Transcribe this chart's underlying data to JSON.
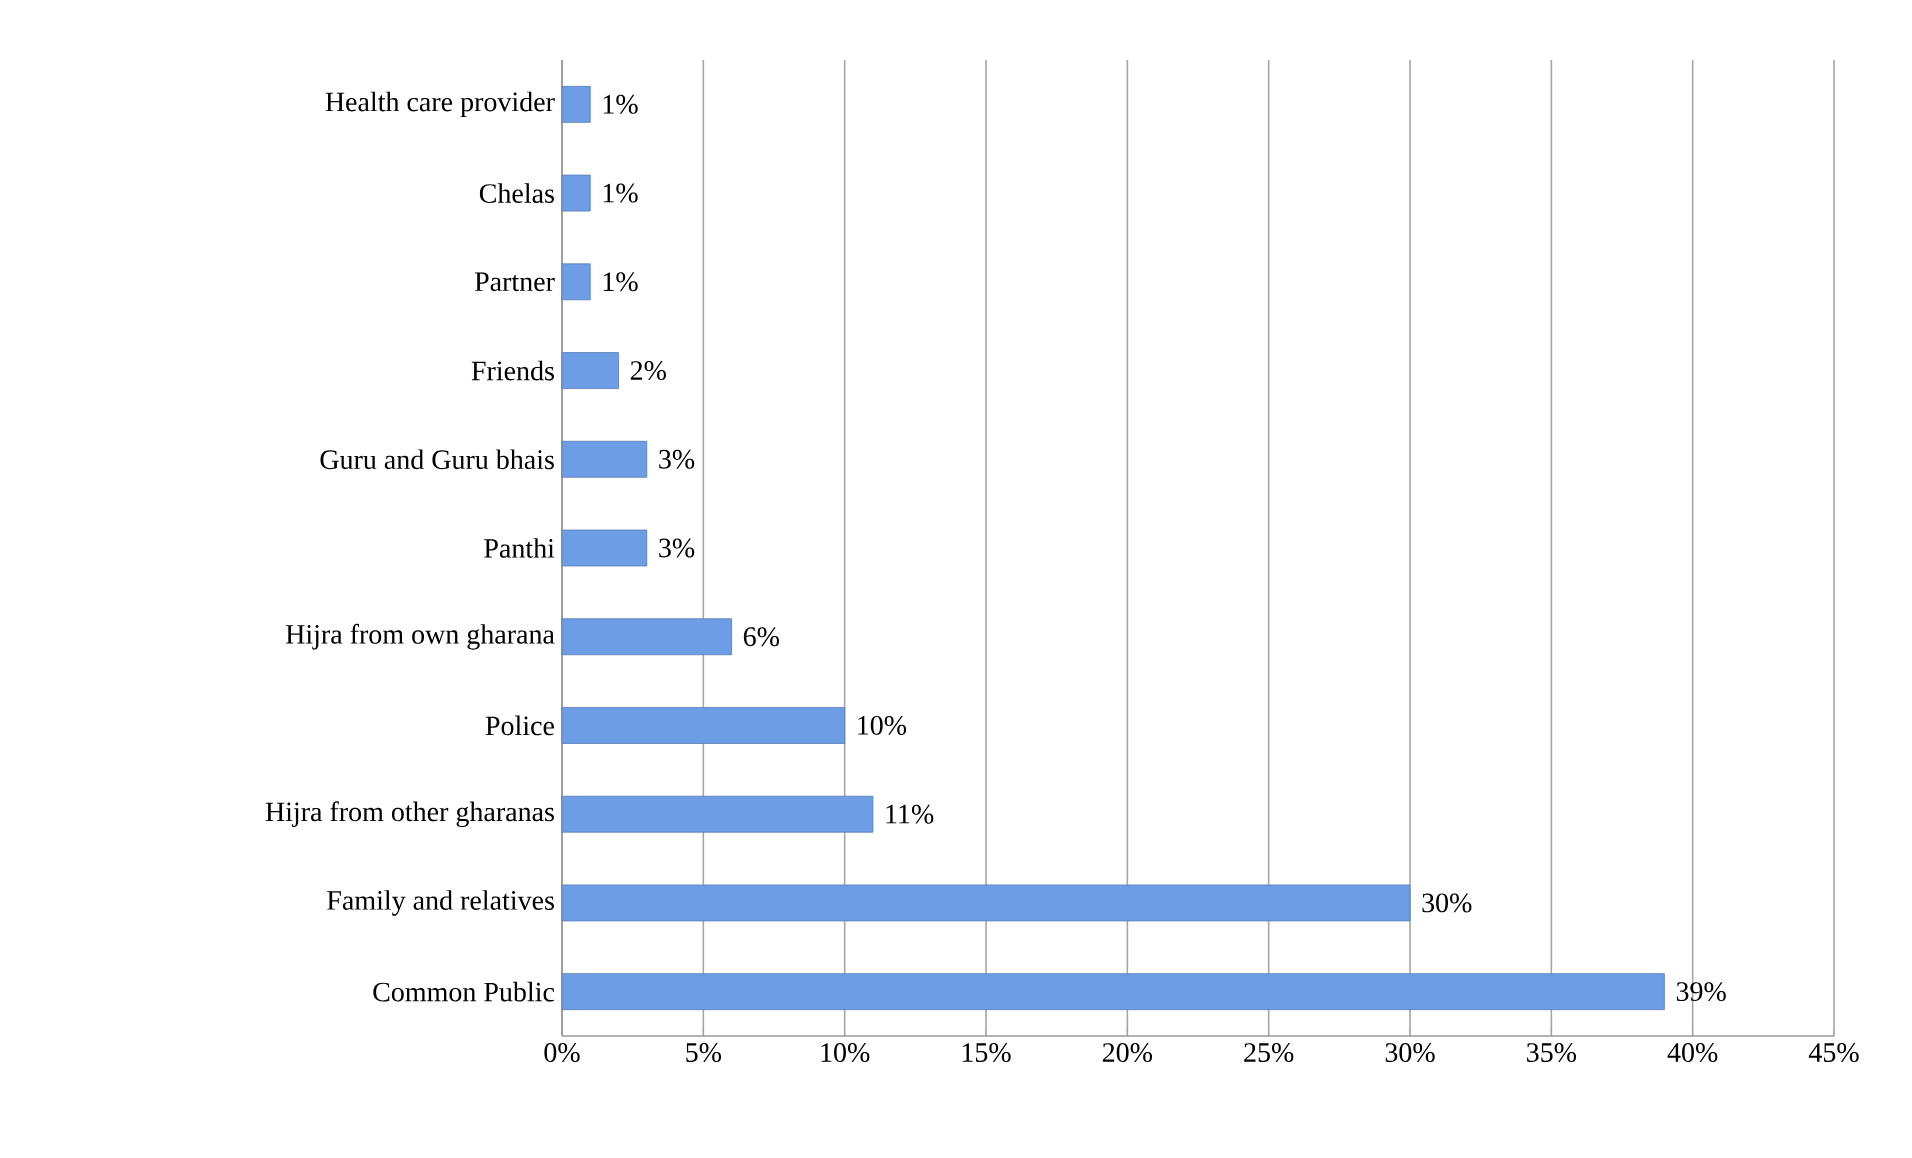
{
  "chart_data": {
    "type": "bar",
    "orientation": "horizontal",
    "categories": [
      "Health care provider",
      "Chelas",
      "Partner",
      "Friends",
      "Guru and Guru bhais",
      "Panthi",
      "Hijra from own gharana",
      "Police",
      "Hijra from other gharanas",
      "Family and relatives",
      "Common Public"
    ],
    "values": [
      1,
      1,
      1,
      2,
      3,
      3,
      6,
      10,
      11,
      30,
      39
    ],
    "value_labels": [
      "1%",
      "1%",
      "1%",
      "2%",
      "3%",
      "3%",
      "6%",
      "10%",
      "11%",
      "30%",
      "39%"
    ],
    "color": "#6d9de4",
    "xlim": [
      0,
      45
    ],
    "xticks": [
      {
        "value": 0,
        "label": "0%"
      },
      {
        "value": 5,
        "label": "5%"
      },
      {
        "value": 10,
        "label": "10%"
      },
      {
        "value": 15,
        "label": "15%"
      },
      {
        "value": 20,
        "label": "20%"
      },
      {
        "value": 25,
        "label": "25%"
      },
      {
        "value": 30,
        "label": "30%"
      },
      {
        "value": 35,
        "label": "35%"
      },
      {
        "value": 40,
        "label": "40%"
      },
      {
        "value": 45,
        "label": "45%"
      }
    ],
    "grid": "x"
  }
}
